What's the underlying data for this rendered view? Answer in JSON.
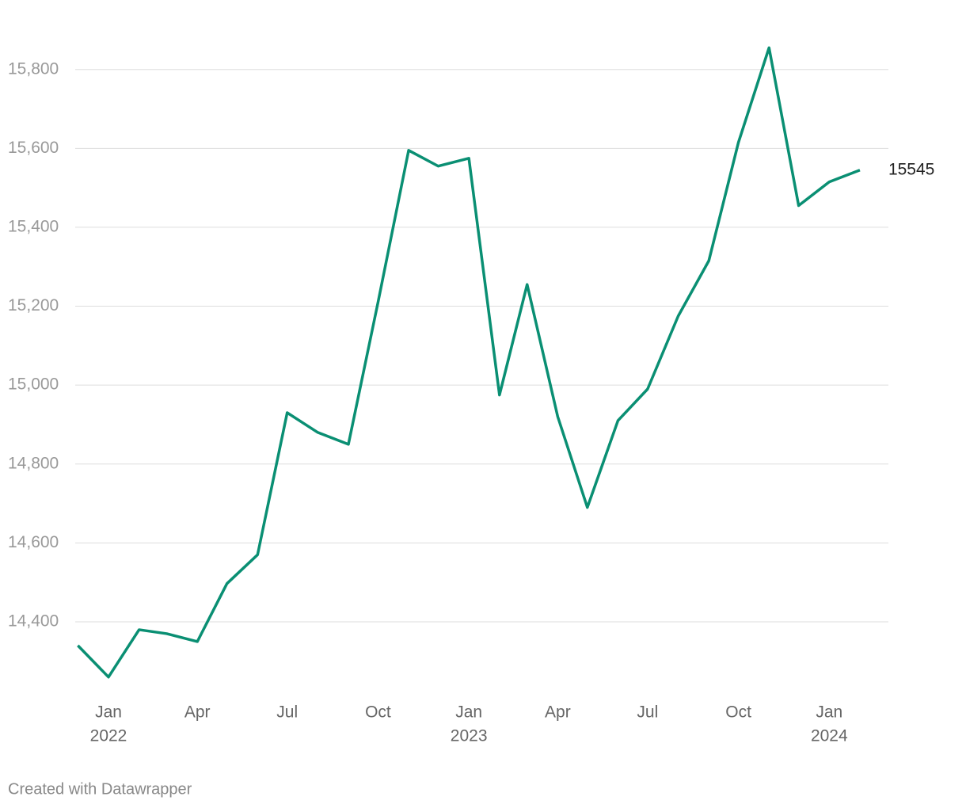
{
  "chart_data": {
    "type": "line",
    "x": [
      "2021-12",
      "2022-01",
      "2022-02",
      "2022-03",
      "2022-04",
      "2022-05",
      "2022-06",
      "2022-07",
      "2022-08",
      "2022-09",
      "2022-10",
      "2022-11",
      "2022-12",
      "2023-01",
      "2023-02",
      "2023-03",
      "2023-04",
      "2023-05",
      "2023-06",
      "2023-07",
      "2023-08",
      "2023-09",
      "2023-10",
      "2023-11",
      "2023-12",
      "2024-01",
      "2024-02"
    ],
    "series": [
      {
        "color": "#0a8f73",
        "values": [
          14340,
          14260,
          14380,
          14370,
          14350,
          14497,
          14570,
          14930,
          14880,
          14850,
          15210,
          15595,
          15555,
          15575,
          14975,
          15255,
          14920,
          14690,
          14910,
          14990,
          15175,
          15315,
          15615,
          15855,
          15455,
          15515,
          15545
        ]
      }
    ],
    "ylim": [
      14200,
      15950
    ],
    "yticks": [
      {
        "value": 14400,
        "label": "14,400"
      },
      {
        "value": 14600,
        "label": "14,600"
      },
      {
        "value": 14800,
        "label": "14,800"
      },
      {
        "value": 15000,
        "label": "15,000"
      },
      {
        "value": 15200,
        "label": "15,200"
      },
      {
        "value": 15400,
        "label": "15,400"
      },
      {
        "value": 15600,
        "label": "15,600"
      },
      {
        "value": 15800,
        "label": "15,800"
      }
    ],
    "xticks": [
      {
        "value": "2022-01",
        "label": "Jan",
        "year": "2022"
      },
      {
        "value": "2022-04",
        "label": "Apr"
      },
      {
        "value": "2022-07",
        "label": "Jul"
      },
      {
        "value": "2022-10",
        "label": "Oct"
      },
      {
        "value": "2023-01",
        "label": "Jan",
        "year": "2023"
      },
      {
        "value": "2023-04",
        "label": "Apr"
      },
      {
        "value": "2023-07",
        "label": "Jul"
      },
      {
        "value": "2023-10",
        "label": "Oct"
      },
      {
        "value": "2024-01",
        "label": "Jan",
        "year": "2024"
      }
    ],
    "grid": true,
    "footer": "Created with Datawrapper"
  }
}
